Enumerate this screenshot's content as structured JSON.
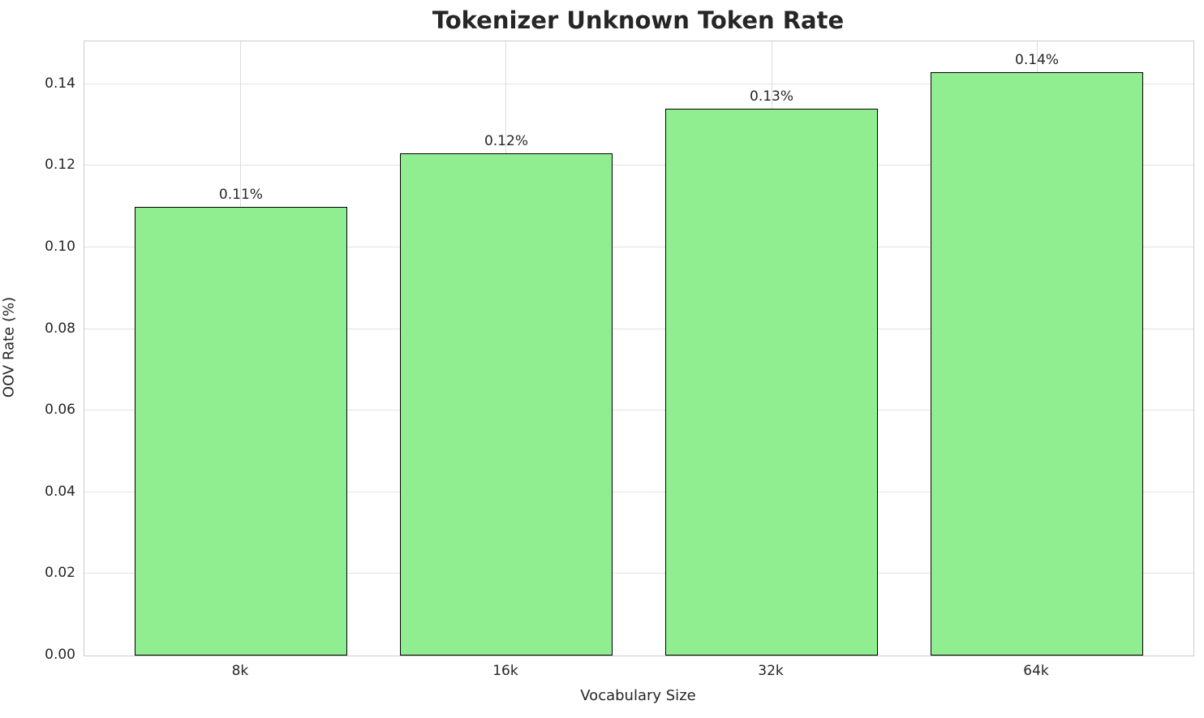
{
  "chart_data": {
    "type": "bar",
    "title": "Tokenizer Unknown Token Rate",
    "xlabel": "Vocabulary Size",
    "ylabel": "OOV Rate (%)",
    "categories": [
      "8k",
      "16k",
      "32k",
      "64k"
    ],
    "values": [
      0.11,
      0.123,
      0.134,
      0.143
    ],
    "bar_labels": [
      "0.11%",
      "0.12%",
      "0.13%",
      "0.14%"
    ],
    "ytick_labels": [
      "0.00",
      "0.02",
      "0.04",
      "0.06",
      "0.08",
      "0.10",
      "0.12",
      "0.14"
    ],
    "ytick_values": [
      0.0,
      0.02,
      0.04,
      0.06,
      0.08,
      0.1,
      0.12,
      0.14
    ],
    "ylim": [
      0,
      0.1505
    ],
    "xlim": [
      -0.59,
      3.59
    ],
    "bar_width": 0.8,
    "bar_color": "#90EE90",
    "bar_edge_color": "#000000",
    "grid": true,
    "grid_color": "#dcdcdc",
    "background_color": "#ffffff",
    "legend": null
  }
}
